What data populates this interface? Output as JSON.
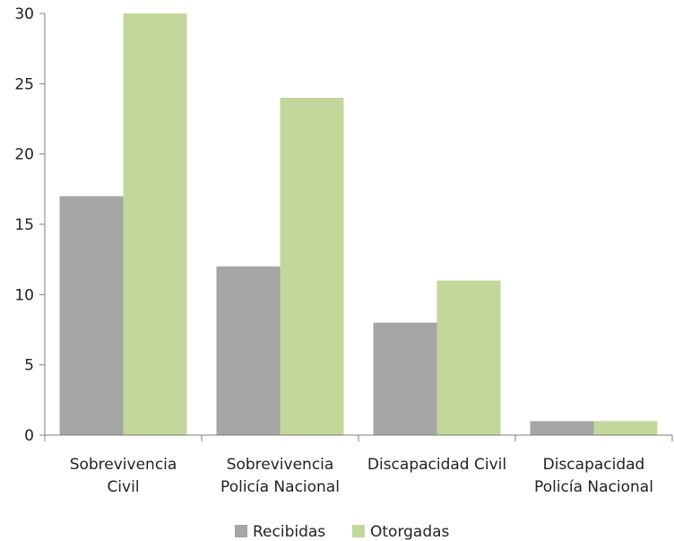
{
  "chart_data": {
    "type": "bar",
    "title": "",
    "xlabel": "",
    "ylabel": "",
    "ylim": [
      0,
      30
    ],
    "yticks": [
      0,
      5,
      10,
      15,
      20,
      25,
      30
    ],
    "grid": false,
    "legend_position": "bottom",
    "categories": [
      [
        "Sobrevivencia",
        "Civil"
      ],
      [
        "Sobrevivencia",
        "Policía Nacional"
      ],
      [
        "Discapacidad Civil"
      ],
      [
        "Discapacidad",
        "Policía Nacional"
      ]
    ],
    "series": [
      {
        "name": "Recibidas",
        "color": "#a6a6a6",
        "values": [
          17,
          12,
          8,
          1
        ]
      },
      {
        "name": "Otorgadas",
        "color": "#c4d79b",
        "values": [
          30,
          24,
          11,
          1
        ]
      }
    ]
  }
}
